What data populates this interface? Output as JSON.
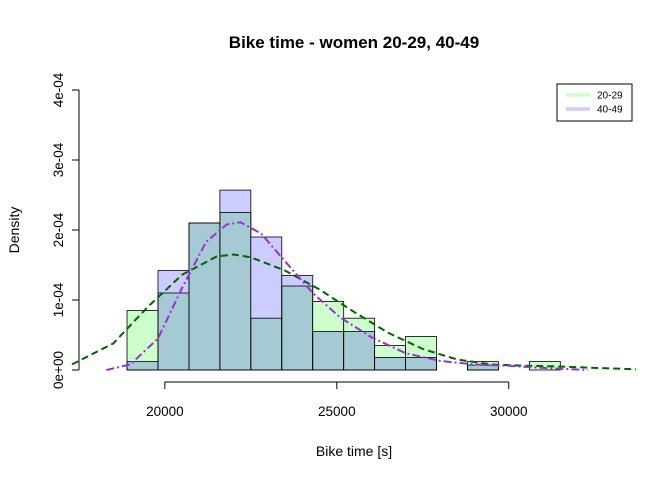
{
  "chart_data": {
    "type": "histogram",
    "title": "Bike time - women 20-29, 40-49",
    "xlabel": "Bike time [s]",
    "ylabel": "Density",
    "xlim": [
      17300,
      33700
    ],
    "ylim": [
      0,
      0.0004
    ],
    "x_ticks": [
      20000,
      25000,
      30000
    ],
    "x_tick_labels": [
      "20000",
      "25000",
      "30000"
    ],
    "y_ticks": [
      0,
      0.0001,
      0.0002,
      0.0003,
      0.0004
    ],
    "y_tick_labels": [
      "0e+00",
      "1e-04",
      "2e-04",
      "3e-04",
      "4e-04"
    ],
    "grid": false,
    "legend_position": "top-right",
    "bin_edges": [
      18900,
      19800,
      20700,
      21600,
      22500,
      23400,
      24300,
      25200,
      26100,
      27000,
      27900,
      28800,
      29700,
      30600,
      31500
    ],
    "series": [
      {
        "name": "20-29",
        "color": "#ccffcc",
        "line_color": "#006400",
        "line_style": "dashed",
        "densities": [
          8.5e-05,
          0.00011,
          0.00021,
          0.000225,
          7.4e-05,
          0.00012,
          9.8e-05,
          7.4e-05,
          3.5e-05,
          4.8e-05,
          0.0,
          1.2e-05,
          0.0,
          1.2e-05
        ],
        "curve": {
          "x": [
            17300,
            18500,
            19500,
            20500,
            21500,
            22000,
            22500,
            23500,
            24500,
            25500,
            26500,
            27500,
            28500,
            29500,
            30500,
            31500,
            32500,
            33700
          ],
          "y": [
            8e-06,
            3.8e-05,
            9e-05,
            0.000136,
            0.000162,
            0.000165,
            0.000161,
            0.000142,
            0.000115,
            8.3e-05,
            5.3e-05,
            3e-05,
            1.5e-05,
            8e-06,
            6e-06,
            5e-06,
            3e-06,
            1e-06
          ]
        }
      },
      {
        "name": "40-49",
        "color": "#ccccff",
        "line_color": "#9932cc",
        "line_style": "dotdash",
        "densities": [
          1.2e-05,
          0.000142,
          0.00021,
          0.000257,
          0.00019,
          0.000135,
          5.5e-05,
          5.5e-05,
          1.8e-05,
          1.8e-05,
          0.0,
          7e-06,
          0.0,
          0.0
        ],
        "curve": {
          "x": [
            18300,
            19000,
            19800,
            20500,
            21200,
            21800,
            22200,
            22800,
            23500,
            24300,
            25100,
            26000,
            27000,
            28000,
            29000,
            30000,
            31000,
            32300
          ],
          "y": [
            0.0,
            8e-06,
            4.5e-05,
            0.000117,
            0.000183,
            0.000208,
            0.000211,
            0.000195,
            0.000155,
            0.00011,
            7.5e-05,
            4.7e-05,
            2.4e-05,
            1.3e-05,
            8e-06,
            6e-06,
            3e-06,
            0.0
          ]
        }
      }
    ],
    "overlap_color": "#a6cad4"
  }
}
